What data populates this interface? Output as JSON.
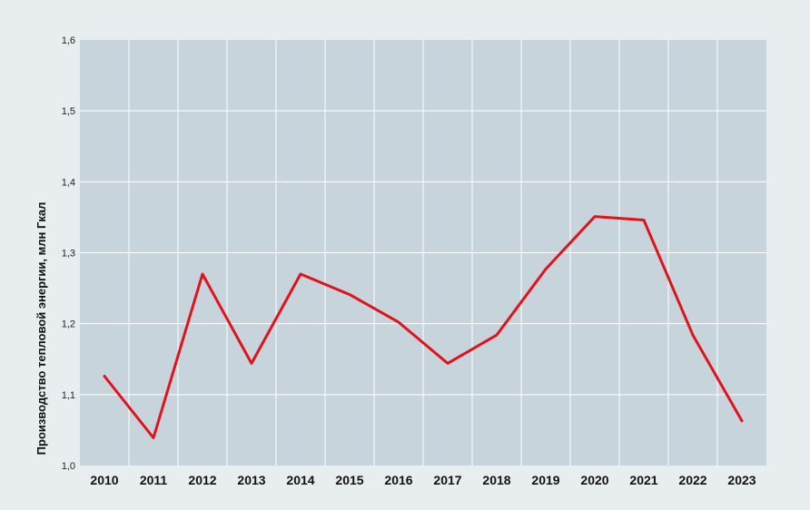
{
  "chart_data": {
    "type": "line",
    "title": "",
    "xlabel": "",
    "ylabel": "Производство тепловой энергии, млн Гкал",
    "categories": [
      "2010",
      "2011",
      "2012",
      "2013",
      "2014",
      "2015",
      "2016",
      "2017",
      "2018",
      "2019",
      "2020",
      "2021",
      "2022",
      "2023"
    ],
    "series": [
      {
        "values": [
          1.126,
          1.039,
          1.27,
          1.144,
          1.27,
          1.241,
          1.202,
          1.144,
          1.184,
          1.277,
          1.351,
          1.346,
          1.184,
          1.063
        ]
      }
    ],
    "ylim": [
      1.0,
      1.6
    ],
    "yticks": [
      "1,0",
      "1,1",
      "1,2",
      "1,3",
      "1,4",
      "1,5",
      "1,6"
    ],
    "grid": true,
    "colors": {
      "line": "#e0131b",
      "plot_bg": "#c7d4dc",
      "page_bg": "#e8edf0",
      "grid": "#ffffff"
    }
  }
}
